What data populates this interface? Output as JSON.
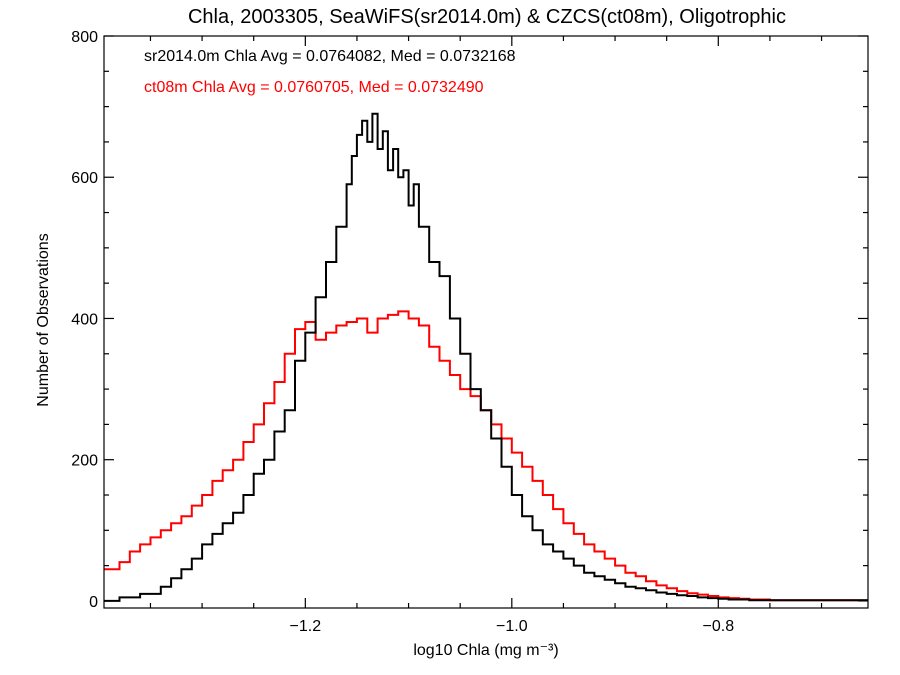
{
  "chart_data": {
    "type": "histogram",
    "title": "Chla, 2003305, SeaWiFS(sr2014.0m) & CZCS(ct08m), Oligotrophic",
    "xlabel": "log10 Chla (mg m⁻³)",
    "ylabel": "Number of Observations",
    "xlim": [
      -1.395,
      -0.655
    ],
    "ylim": [
      -10,
      800
    ],
    "x_ticks": [
      -1.2,
      -1.0,
      -0.8
    ],
    "x_tick_labels": [
      "−1.2",
      "−1.0",
      "−0.8"
    ],
    "y_ticks": [
      0,
      200,
      400,
      600,
      800
    ],
    "y_tick_labels": [
      "0",
      "200",
      "400",
      "600",
      "800"
    ],
    "bin_width": 0.005,
    "grid": false,
    "annotations": [
      {
        "text": "sr2014.0m Chla Avg = 0.0764082, Med = 0.0732168",
        "color": "#000000"
      },
      {
        "text": "ct08m Chla Avg = 0.0760705, Med = 0.0732490",
        "color": "#ff0000"
      }
    ],
    "series": [
      {
        "name": "sr2014.0m",
        "color": "#000000",
        "points": [
          [
            -1.395,
            0
          ],
          [
            -1.38,
            5
          ],
          [
            -1.36,
            10
          ],
          [
            -1.34,
            20
          ],
          [
            -1.33,
            32
          ],
          [
            -1.32,
            45
          ],
          [
            -1.31,
            60
          ],
          [
            -1.3,
            80
          ],
          [
            -1.29,
            95
          ],
          [
            -1.28,
            110
          ],
          [
            -1.27,
            125
          ],
          [
            -1.26,
            150
          ],
          [
            -1.25,
            180
          ],
          [
            -1.24,
            200
          ],
          [
            -1.23,
            240
          ],
          [
            -1.22,
            270
          ],
          [
            -1.21,
            340
          ],
          [
            -1.2,
            380
          ],
          [
            -1.19,
            430
          ],
          [
            -1.18,
            480
          ],
          [
            -1.17,
            530
          ],
          [
            -1.16,
            590
          ],
          [
            -1.155,
            630
          ],
          [
            -1.15,
            660
          ],
          [
            -1.145,
            680
          ],
          [
            -1.14,
            650
          ],
          [
            -1.135,
            690
          ],
          [
            -1.13,
            640
          ],
          [
            -1.125,
            665
          ],
          [
            -1.12,
            610
          ],
          [
            -1.115,
            640
          ],
          [
            -1.11,
            600
          ],
          [
            -1.105,
            610
          ],
          [
            -1.1,
            560
          ],
          [
            -1.095,
            590
          ],
          [
            -1.09,
            530
          ],
          [
            -1.08,
            480
          ],
          [
            -1.07,
            460
          ],
          [
            -1.06,
            400
          ],
          [
            -1.05,
            350
          ],
          [
            -1.04,
            300
          ],
          [
            -1.03,
            270
          ],
          [
            -1.02,
            230
          ],
          [
            -1.01,
            190
          ],
          [
            -1.0,
            150
          ],
          [
            -0.99,
            120
          ],
          [
            -0.98,
            100
          ],
          [
            -0.97,
            80
          ],
          [
            -0.96,
            70
          ],
          [
            -0.95,
            60
          ],
          [
            -0.94,
            50
          ],
          [
            -0.93,
            40
          ],
          [
            -0.92,
            35
          ],
          [
            -0.91,
            30
          ],
          [
            -0.9,
            25
          ],
          [
            -0.89,
            20
          ],
          [
            -0.88,
            18
          ],
          [
            -0.87,
            15
          ],
          [
            -0.86,
            12
          ],
          [
            -0.85,
            10
          ],
          [
            -0.84,
            8
          ],
          [
            -0.83,
            7
          ],
          [
            -0.82,
            5
          ],
          [
            -0.81,
            4
          ],
          [
            -0.8,
            3
          ],
          [
            -0.79,
            2
          ],
          [
            -0.78,
            2
          ],
          [
            -0.77,
            1
          ],
          [
            -0.76,
            1
          ],
          [
            -0.655,
            0
          ]
        ]
      },
      {
        "name": "ct08m",
        "color": "#ff0000",
        "points": [
          [
            -1.395,
            45
          ],
          [
            -1.38,
            55
          ],
          [
            -1.37,
            70
          ],
          [
            -1.36,
            80
          ],
          [
            -1.35,
            90
          ],
          [
            -1.34,
            100
          ],
          [
            -1.33,
            110
          ],
          [
            -1.32,
            120
          ],
          [
            -1.31,
            135
          ],
          [
            -1.3,
            150
          ],
          [
            -1.29,
            170
          ],
          [
            -1.28,
            185
          ],
          [
            -1.27,
            200
          ],
          [
            -1.26,
            225
          ],
          [
            -1.25,
            250
          ],
          [
            -1.24,
            280
          ],
          [
            -1.23,
            310
          ],
          [
            -1.22,
            350
          ],
          [
            -1.21,
            385
          ],
          [
            -1.2,
            395
          ],
          [
            -1.19,
            370
          ],
          [
            -1.18,
            380
          ],
          [
            -1.17,
            390
          ],
          [
            -1.16,
            395
          ],
          [
            -1.15,
            400
          ],
          [
            -1.14,
            380
          ],
          [
            -1.13,
            400
          ],
          [
            -1.12,
            405
          ],
          [
            -1.11,
            410
          ],
          [
            -1.1,
            400
          ],
          [
            -1.09,
            390
          ],
          [
            -1.08,
            360
          ],
          [
            -1.07,
            340
          ],
          [
            -1.06,
            320
          ],
          [
            -1.05,
            300
          ],
          [
            -1.04,
            290
          ],
          [
            -1.03,
            270
          ],
          [
            -1.02,
            250
          ],
          [
            -1.01,
            230
          ],
          [
            -1.0,
            210
          ],
          [
            -0.99,
            190
          ],
          [
            -0.98,
            170
          ],
          [
            -0.97,
            150
          ],
          [
            -0.96,
            130
          ],
          [
            -0.95,
            110
          ],
          [
            -0.94,
            95
          ],
          [
            -0.93,
            80
          ],
          [
            -0.92,
            70
          ],
          [
            -0.91,
            60
          ],
          [
            -0.9,
            50
          ],
          [
            -0.89,
            40
          ],
          [
            -0.88,
            35
          ],
          [
            -0.87,
            28
          ],
          [
            -0.86,
            22
          ],
          [
            -0.85,
            18
          ],
          [
            -0.84,
            14
          ],
          [
            -0.83,
            11
          ],
          [
            -0.82,
            9
          ],
          [
            -0.81,
            7
          ],
          [
            -0.8,
            5
          ],
          [
            -0.79,
            4
          ],
          [
            -0.78,
            3
          ],
          [
            -0.77,
            2
          ],
          [
            -0.76,
            2
          ],
          [
            -0.75,
            1
          ],
          [
            -0.655,
            0
          ]
        ]
      }
    ]
  }
}
